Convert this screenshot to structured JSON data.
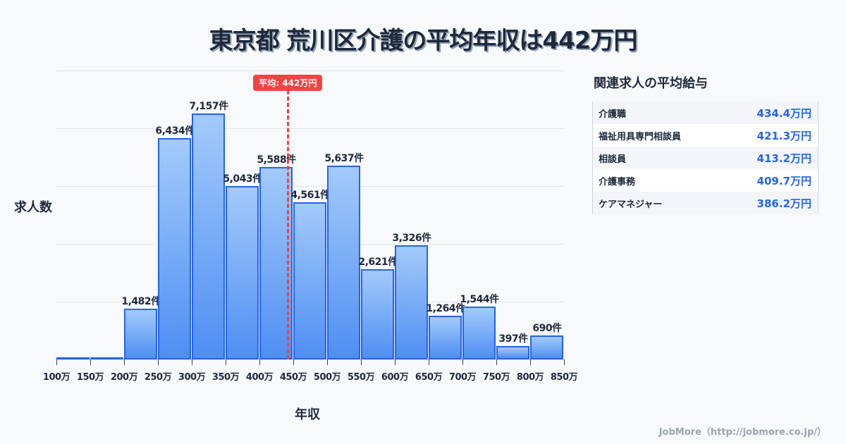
{
  "title": "東京都 荒川区介護の平均年収は442万円",
  "chart_data": {
    "type": "bar",
    "title": "東京都 荒川区介護の平均年収は442万円",
    "xlabel": "年収",
    "ylabel": "求人数",
    "categories": [
      "100万-150万",
      "150万-200万",
      "200万-250万",
      "250万-300万",
      "300万-350万",
      "350万-400万",
      "400万-450万",
      "450万-500万",
      "500万-550万",
      "550万-600万",
      "600万-650万",
      "650万-700万",
      "700万-750万",
      "750万-800万",
      "800万-850万"
    ],
    "values": [
      0,
      0,
      1482,
      6434,
      7157,
      5043,
      5588,
      4561,
      5637,
      2621,
      3326,
      1264,
      1544,
      397,
      690
    ],
    "value_labels": [
      "",
      "",
      "1,482件",
      "6,434件",
      "7,157件",
      "5,043件",
      "5,588件",
      "4,561件",
      "5,637件",
      "2,621件",
      "3,326件",
      "1,264件",
      "1,544件",
      "397件",
      "690件"
    ],
    "x_ticks": [
      "100万",
      "150万",
      "200万",
      "250万",
      "300万",
      "350万",
      "400万",
      "450万",
      "500万",
      "550万",
      "600万",
      "650万",
      "700万",
      "750万",
      "800万",
      "850万"
    ],
    "average_line": {
      "value": 442,
      "label": "平均: 442万円",
      "color": "#ef4444"
    },
    "grid": true,
    "legend": "none",
    "bar_color": "#4f8ef3",
    "bar_border_color": "#2563eb"
  },
  "axis": {
    "y_label": "求人数",
    "x_label": "年収"
  },
  "side_panel": {
    "title": "関連求人の平均給与",
    "rows": [
      {
        "name": "介護職",
        "value": "434.4万円"
      },
      {
        "name": "福祉用具専門相談員",
        "value": "421.3万円"
      },
      {
        "name": "相談員",
        "value": "413.2万円"
      },
      {
        "name": "介護事務",
        "value": "409.7万円"
      },
      {
        "name": "ケアマネジャー",
        "value": "386.2万円"
      }
    ]
  },
  "footer": "JobMore（http://jobmore.co.jp/）"
}
